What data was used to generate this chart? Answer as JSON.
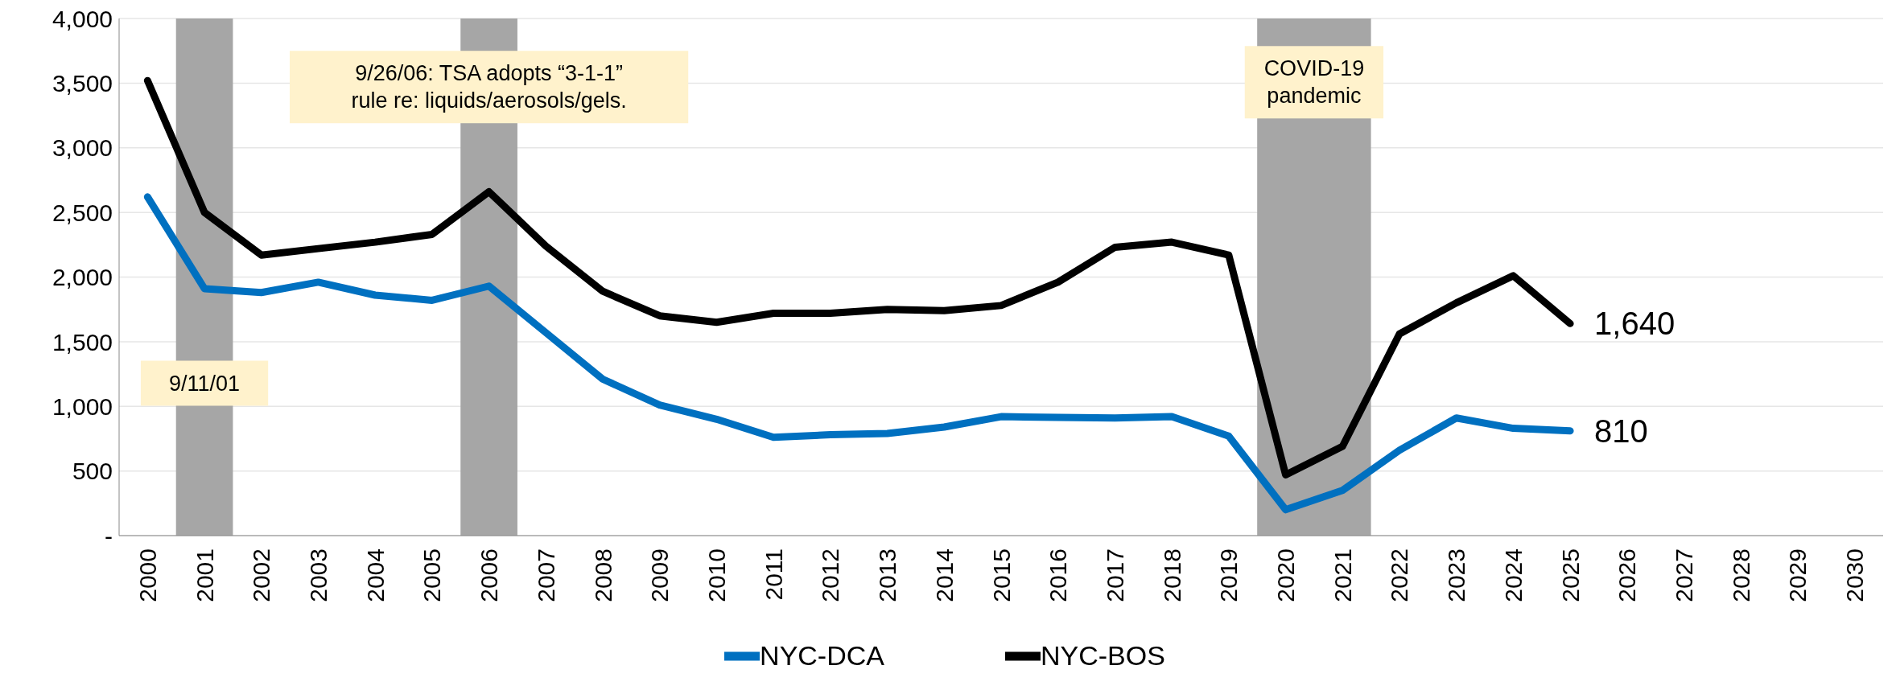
{
  "chart_data": {
    "type": "line",
    "categories": [
      "2000",
      "2001",
      "2002",
      "2003",
      "2004",
      "2005",
      "2006",
      "2007",
      "2008",
      "2009",
      "2010",
      "2011",
      "2012",
      "2013",
      "2014",
      "2015",
      "2016",
      "2017",
      "2018",
      "2019",
      "2020",
      "2021",
      "2022",
      "2023",
      "2024",
      "2025",
      "2026",
      "2027",
      "2028",
      "2029",
      "2030"
    ],
    "series": [
      {
        "name": "NYC-DCA",
        "color": "#0070c0",
        "values": [
          2620,
          1910,
          1880,
          1960,
          1860,
          1820,
          1930,
          1570,
          1210,
          1010,
          900,
          760,
          780,
          790,
          840,
          920,
          915,
          910,
          920,
          770,
          200,
          350,
          660,
          910,
          830,
          810,
          null,
          null,
          null,
          null,
          null
        ],
        "value_labels": [
          null,
          null,
          null,
          null,
          null,
          null,
          null,
          null,
          null,
          null,
          null,
          null,
          null,
          null,
          null,
          null,
          null,
          null,
          null,
          null,
          null,
          null,
          null,
          null,
          null,
          "810",
          null,
          null,
          null,
          null,
          null
        ]
      },
      {
        "name": "NYC-BOS",
        "color": "#000000",
        "values": [
          3520,
          2500,
          2170,
          2220,
          2270,
          2330,
          2660,
          2240,
          1890,
          1700,
          1650,
          1720,
          1720,
          1750,
          1740,
          1780,
          1960,
          2230,
          2270,
          2170,
          470,
          690,
          1560,
          1800,
          2010,
          1640,
          null,
          null,
          null,
          null,
          null
        ],
        "value_labels": [
          null,
          null,
          null,
          null,
          null,
          null,
          null,
          null,
          null,
          null,
          null,
          null,
          null,
          null,
          null,
          null,
          null,
          null,
          null,
          null,
          null,
          null,
          null,
          null,
          null,
          "1,640",
          null,
          null,
          null,
          null,
          null
        ]
      }
    ],
    "ylim": [
      0,
      4000
    ],
    "yticks": [
      {
        "value": 0,
        "label": "-"
      },
      {
        "value": 500,
        "label": "500"
      },
      {
        "value": 1000,
        "label": "1,000"
      },
      {
        "value": 1500,
        "label": "1,500"
      },
      {
        "value": 2000,
        "label": "2,000"
      },
      {
        "value": 2500,
        "label": "2,500"
      },
      {
        "value": 3000,
        "label": "3,000"
      },
      {
        "value": 3500,
        "label": "3,500"
      },
      {
        "value": 4000,
        "label": "4,000"
      }
    ],
    "bands": [
      {
        "axis": "x",
        "from": "2001",
        "to": "2001",
        "label": "9/11/01",
        "color": "#a6a6a6"
      },
      {
        "axis": "x",
        "from": "2006",
        "to": "2006",
        "label": "9/26/06: TSA adopts “3-1-1”\nrule re: liquids/aerosols/gels.",
        "color": "#a6a6a6"
      },
      {
        "axis": "x",
        "from": "2020",
        "to": "2021",
        "label": "COVID-19\npandemic",
        "color": "#a6a6a6"
      }
    ],
    "grid": "y",
    "legend": "bottom",
    "marker": "none",
    "line_style": "solid"
  }
}
